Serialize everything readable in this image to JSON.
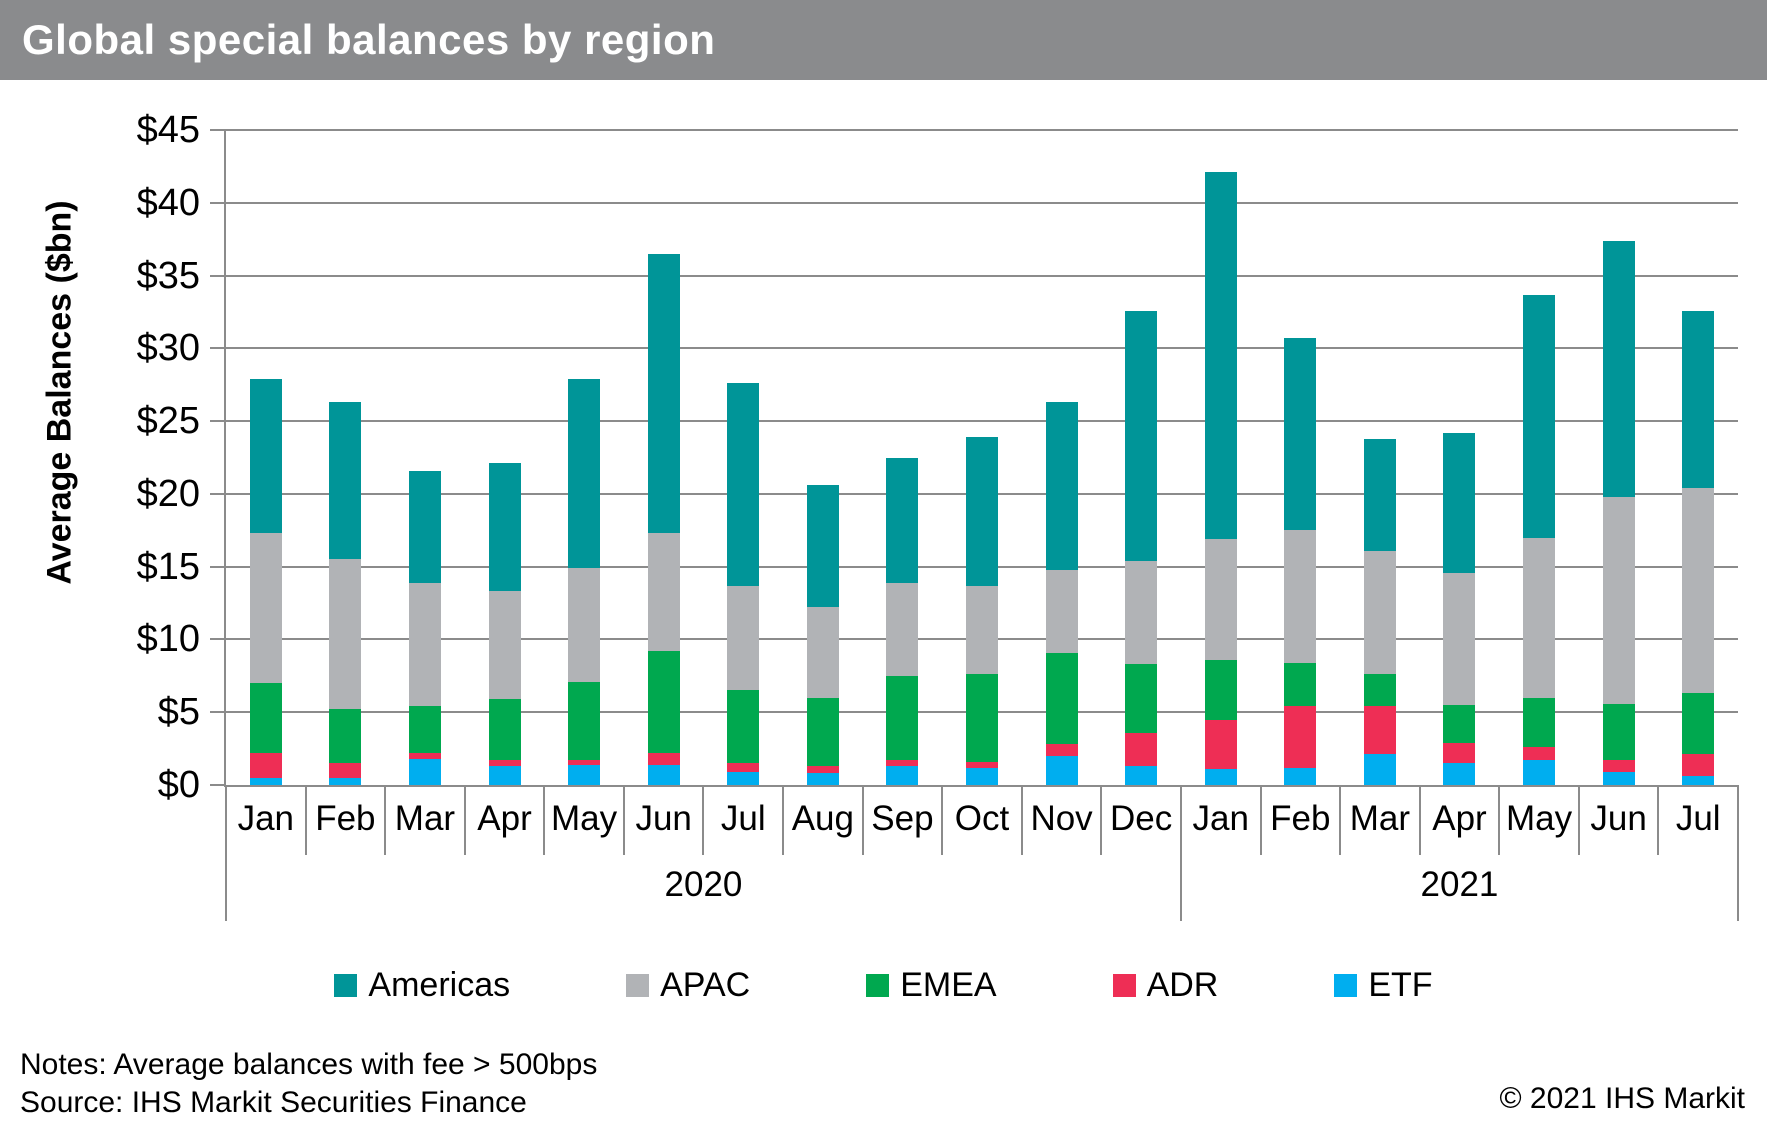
{
  "title": "Global special balances by region",
  "title_bar_color": "#8A8B8D",
  "y_axis": {
    "title": "Average Balances ($bn)",
    "tick_labels": [
      "$0",
      "$5",
      "$10",
      "$15",
      "$20",
      "$25",
      "$30",
      "$35",
      "$40",
      "$45"
    ],
    "min": 0,
    "max": 45,
    "step": 5
  },
  "x_axis": {
    "months": [
      "Jan",
      "Feb",
      "Mar",
      "Apr",
      "May",
      "Jun",
      "Jul",
      "Aug",
      "Sep",
      "Oct",
      "Nov",
      "Dec",
      "Jan",
      "Feb",
      "Mar",
      "Apr",
      "May",
      "Jun",
      "Jul"
    ],
    "year_groups": [
      {
        "label": "2020",
        "months": 12
      },
      {
        "label": "2021",
        "months": 7
      }
    ]
  },
  "legend": [
    {
      "label": "Americas",
      "color": "#009598"
    },
    {
      "label": "APAC",
      "color": "#B1B3B6"
    },
    {
      "label": "EMEA",
      "color": "#00A84F"
    },
    {
      "label": "ADR",
      "color": "#EE2E55"
    },
    {
      "label": "ETF",
      "color": "#00AEEF"
    }
  ],
  "chart_data": {
    "type": "bar",
    "stacked": true,
    "title": "Global special balances by region",
    "ylabel": "Average Balances ($bn)",
    "ylim": [
      0,
      45
    ],
    "grid": true,
    "legend_position": "bottom",
    "categories": [
      "Jan 2020",
      "Feb 2020",
      "Mar 2020",
      "Apr 2020",
      "May 2020",
      "Jun 2020",
      "Jul 2020",
      "Aug 2020",
      "Sep 2020",
      "Oct 2020",
      "Nov 2020",
      "Dec 2020",
      "Jan 2021",
      "Feb 2021",
      "Mar 2021",
      "Apr 2021",
      "May 2021",
      "Jun 2021",
      "Jul 2021"
    ],
    "stack_order_bottom_to_top": [
      "ETF",
      "ADR",
      "EMEA",
      "APAC",
      "Americas"
    ],
    "series": [
      {
        "name": "ETF",
        "color": "#00AEEF",
        "values": [
          0.5,
          0.5,
          1.8,
          1.3,
          1.4,
          1.4,
          0.9,
          0.8,
          1.3,
          1.2,
          2.0,
          1.3,
          1.1,
          1.2,
          2.1,
          1.5,
          1.7,
          0.9,
          0.6
        ]
      },
      {
        "name": "ADR",
        "color": "#EE2E55",
        "values": [
          1.7,
          1.0,
          0.4,
          0.4,
          0.3,
          0.8,
          0.6,
          0.5,
          0.4,
          0.4,
          0.8,
          2.3,
          3.4,
          4.2,
          3.3,
          1.4,
          0.9,
          0.8,
          1.5
        ]
      },
      {
        "name": "EMEA",
        "color": "#00A84F",
        "values": [
          4.8,
          3.7,
          3.2,
          4.2,
          5.4,
          7.0,
          5.0,
          4.7,
          5.8,
          6.0,
          6.3,
          4.7,
          4.1,
          3.0,
          2.2,
          2.6,
          3.4,
          3.9,
          4.2
        ]
      },
      {
        "name": "APAC",
        "color": "#B1B3B6",
        "values": [
          10.3,
          10.3,
          8.5,
          7.4,
          7.8,
          8.1,
          7.2,
          6.2,
          6.4,
          6.1,
          5.7,
          7.1,
          8.3,
          9.1,
          8.5,
          9.1,
          11.0,
          14.2,
          14.1
        ]
      },
      {
        "name": "Americas",
        "color": "#009598",
        "values": [
          10.6,
          10.8,
          7.7,
          8.8,
          13.0,
          19.2,
          13.9,
          8.4,
          8.6,
          10.2,
          11.5,
          17.2,
          25.2,
          13.2,
          7.7,
          9.6,
          16.7,
          17.6,
          12.2
        ]
      }
    ],
    "totals": [
      27.9,
      26.3,
      21.6,
      22.1,
      27.9,
      36.5,
      27.6,
      20.6,
      22.5,
      23.9,
      26.3,
      32.6,
      42.1,
      30.7,
      23.8,
      24.2,
      33.7,
      37.4,
      32.6
    ]
  },
  "notes": {
    "line1": "Notes: Average balances with fee > 500bps",
    "line2": "Source: IHS Markit Securities Finance"
  },
  "copyright": "© 2021 IHS Markit"
}
